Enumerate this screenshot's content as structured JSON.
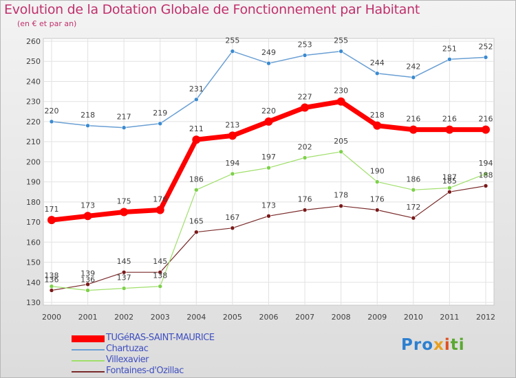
{
  "chart_data": {
    "type": "line",
    "title": "Evolution de la Dotation Globale de Fonctionnement par Habitant",
    "subtitle": "(en € et par an)",
    "x": [
      "2000",
      "2001",
      "2002",
      "2003",
      "2004",
      "2005",
      "2006",
      "2007",
      "2008",
      "2009",
      "2010",
      "2011",
      "2012"
    ],
    "yticks": [
      130,
      140,
      150,
      160,
      170,
      180,
      190,
      200,
      210,
      220,
      230,
      240,
      250,
      260
    ],
    "ylim": [
      130,
      260
    ],
    "grid": true,
    "legend_placement": "bottom-left",
    "series": [
      {
        "name": "TUGéRAS-SAINT-MAURICE",
        "color": "#ff0000",
        "values": [
          171,
          173,
          175,
          176,
          211,
          213,
          220,
          227,
          230,
          218,
          216,
          216,
          216
        ]
      },
      {
        "name": "Chartuzac",
        "color": "#6a9fd4",
        "values": [
          220,
          218,
          217,
          219,
          231,
          255,
          249,
          253,
          255,
          244,
          242,
          251,
          252
        ]
      },
      {
        "name": "Villexavier",
        "color": "#9fdf6a",
        "values": [
          138,
          136,
          137,
          138,
          186,
          194,
          197,
          202,
          205,
          190,
          186,
          187,
          194
        ]
      },
      {
        "name": "Fontaines-d'Ozillac",
        "color": "#7a2a2a",
        "values": [
          136,
          139,
          145,
          145,
          165,
          167,
          173,
          176,
          178,
          176,
          172,
          185,
          188
        ]
      }
    ]
  },
  "logo": {
    "p1": "Pro",
    "p2": "x",
    "p3": "i",
    "p4": "ti"
  }
}
